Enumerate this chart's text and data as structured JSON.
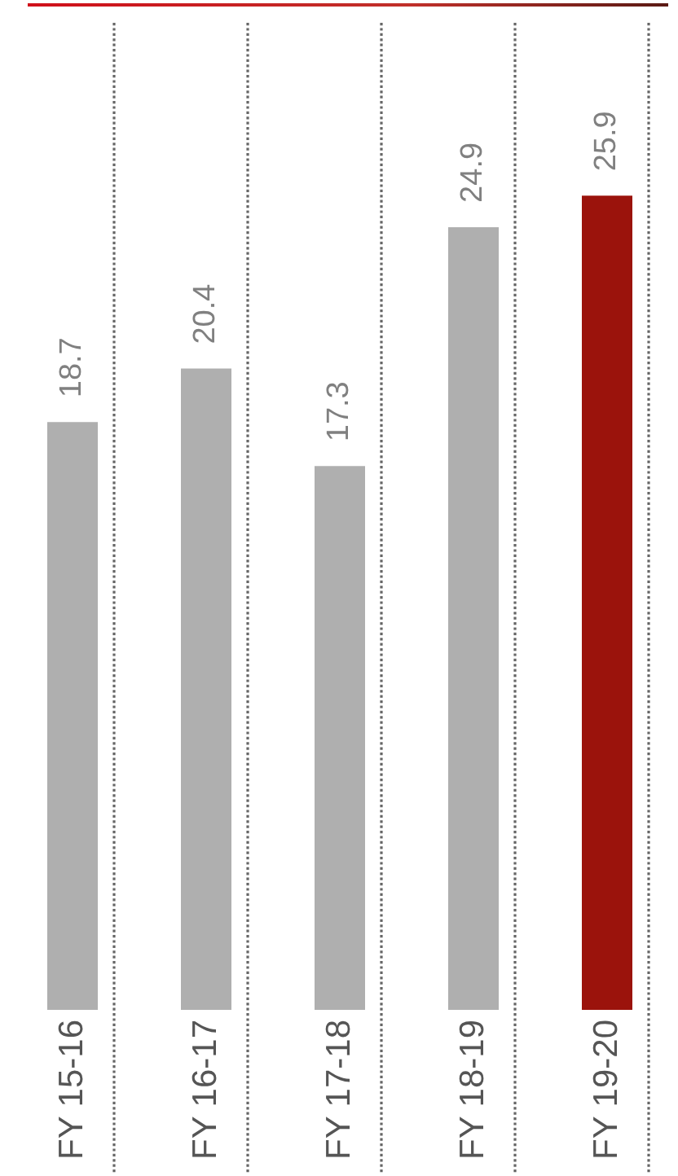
{
  "chart_data": {
    "type": "bar",
    "categories": [
      "FY 15-16",
      "FY 16-17",
      "FY 17-18",
      "FY 18-19",
      "FY 19-20"
    ],
    "values": [
      18.7,
      20.4,
      17.3,
      24.9,
      25.9
    ],
    "colors": [
      "#afafaf",
      "#afafaf",
      "#afafaf",
      "#afafaf",
      "#9b130c"
    ],
    "ylim": [
      0,
      31.4
    ],
    "data_labels": true,
    "grid": "x",
    "tick_labels": "x"
  }
}
